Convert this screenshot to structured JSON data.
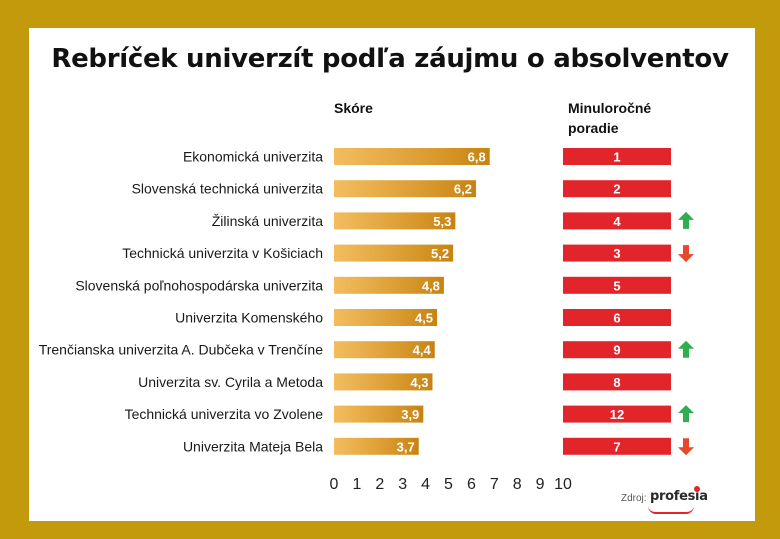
{
  "title": "Rebríček univerzít podľa záujmu o absolventov",
  "headers": {
    "score": "Skóre",
    "previous_line1": "Minuloročné",
    "previous_line2": "poradie"
  },
  "source": {
    "label": "Zdroj:",
    "brand": "profesia"
  },
  "colors": {
    "bar": "#eea62a",
    "bar_dark": "#c78310",
    "rank": "#e2252b",
    "up": "#2eae4e",
    "down": "#e5482c",
    "frame": "#c29a0b"
  },
  "chart_data": {
    "type": "bar",
    "orientation": "horizontal",
    "title": "Rebríček univerzít podľa záujmu o absolventov",
    "xlabel": "Skóre",
    "xlim": [
      0,
      10
    ],
    "xticks": [
      "0",
      "1",
      "2",
      "3",
      "4",
      "5",
      "6",
      "7",
      "8",
      "9",
      "10"
    ],
    "grid": false,
    "categories": [
      "Ekonomická univerzita",
      "Slovenská technická univerzita",
      "Žilinská univerzita",
      "Technická univerzita v Košiciach",
      "Slovenská poľnohospodárska univerzita",
      "Univerzita Komenského",
      "Trenčianska univerzita A. Dubčeka v Trenčíne",
      "Univerzita sv. Cyrila a Metoda",
      "Technická univerzita vo Zvolene",
      "Univerzita Mateja Bela"
    ],
    "values": [
      6.8,
      6.2,
      5.3,
      5.2,
      4.8,
      4.5,
      4.4,
      4.3,
      3.9,
      3.7
    ],
    "value_labels": [
      "6,8",
      "6,2",
      "5,3",
      "5,2",
      "4,8",
      "4,5",
      "4,4",
      "4,3",
      "3,9",
      "3,7"
    ],
    "previous_rank": [
      "1",
      "2",
      "4",
      "3",
      "5",
      "6",
      "9",
      "8",
      "12",
      "7"
    ],
    "trend": [
      "none",
      "none",
      "up",
      "down",
      "none",
      "none",
      "up",
      "none",
      "up",
      "down"
    ]
  }
}
